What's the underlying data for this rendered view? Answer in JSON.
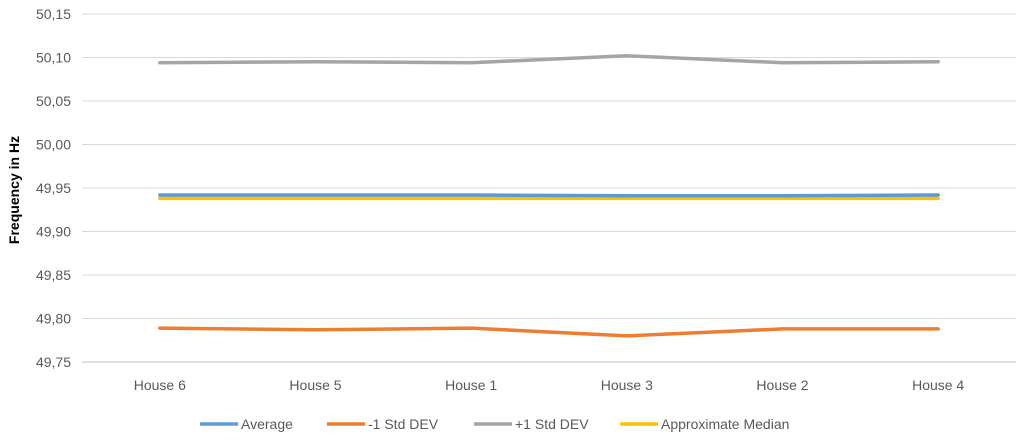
{
  "chart_data": {
    "type": "line",
    "title": "",
    "xlabel": "",
    "ylabel": "Frequency in Hz",
    "categories": [
      "House 6",
      "House 5",
      "House 1",
      "House 3",
      "House 2",
      "House 4"
    ],
    "ylim": [
      49.75,
      50.15
    ],
    "ytick_labels": [
      "49,75",
      "49,80",
      "49,85",
      "49,90",
      "49,95",
      "50,00",
      "50,05",
      "50,10",
      "50,15"
    ],
    "grid": true,
    "legend_position": "bottom",
    "series": [
      {
        "name": "Average",
        "color": "#5B9BD5",
        "values": [
          49.942,
          49.942,
          49.942,
          49.941,
          49.941,
          49.942
        ]
      },
      {
        "name": "-1 Std DEV",
        "color": "#ED7D31",
        "values": [
          49.789,
          49.787,
          49.789,
          49.78,
          49.788,
          49.788
        ]
      },
      {
        "name": "+1 Std DEV",
        "color": "#A5A5A5",
        "values": [
          50.094,
          50.095,
          50.094,
          50.102,
          50.094,
          50.095
        ]
      },
      {
        "name": "Approximate Median",
        "color": "#FFC000",
        "values": [
          49.938,
          49.938,
          49.938,
          49.938,
          49.938,
          49.938
        ]
      }
    ]
  }
}
